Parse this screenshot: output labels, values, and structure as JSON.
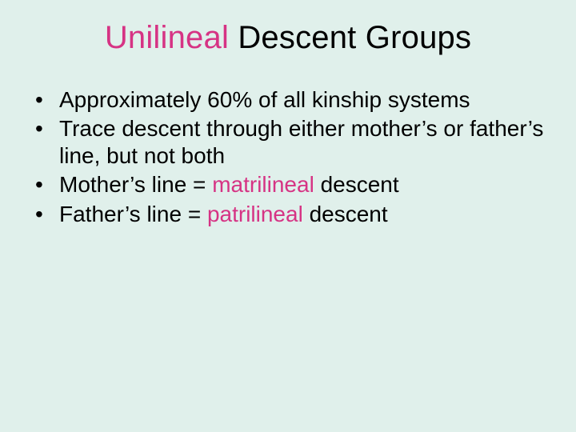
{
  "colors": {
    "background": "#e0f0eb",
    "text": "#000000",
    "highlight": "#d63384"
  },
  "title": {
    "word_highlight": "Unilineal",
    "word_rest": " Descent Groups",
    "fontsize": 40
  },
  "bullets": {
    "fontsize": 28,
    "items": [
      {
        "pre": "Approximately 60% of all kinship systems",
        "hl": "",
        "post": ""
      },
      {
        "pre": "Trace descent through either mother’s or father’s line, but not both",
        "hl": "",
        "post": ""
      },
      {
        "pre": "Mother’s line = ",
        "hl": "matrilineal",
        "post": " descent"
      },
      {
        "pre": "Father’s line = ",
        "hl": "patrilineal",
        "post": " descent"
      }
    ]
  }
}
